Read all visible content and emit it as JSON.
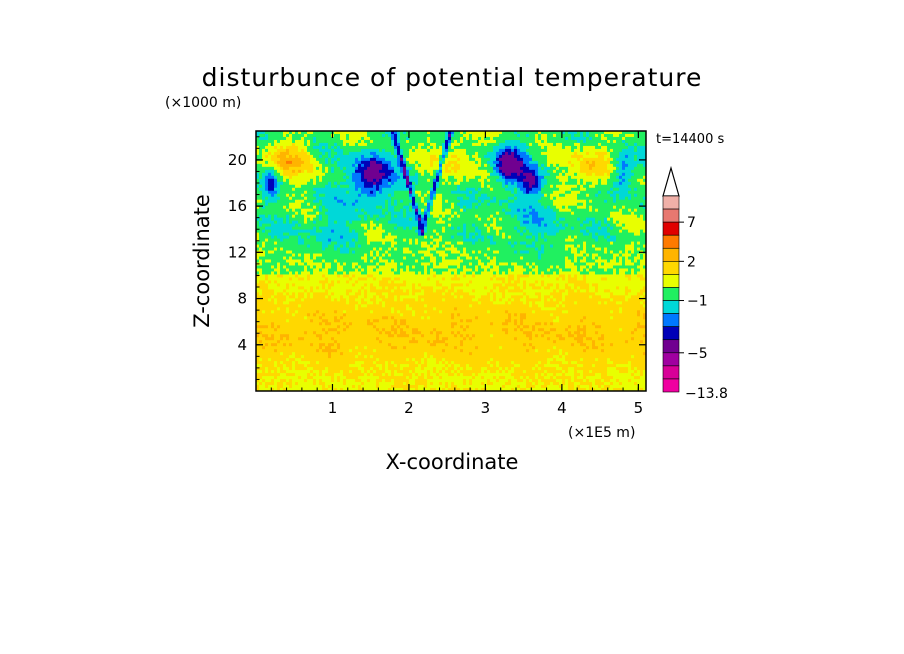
{
  "chart_data": {
    "type": "heatmap",
    "title": "disturbunce of potential temperature",
    "xlabel": "X-coordinate",
    "ylabel": "Z-coordinate",
    "x_unit": "(×1E5 m)",
    "y_unit": "(×1000 m)",
    "annotation": "t=14400 s",
    "xlim": [
      0,
      5.1
    ],
    "ylim": [
      0,
      22.5
    ],
    "x_ticks": [
      1,
      2,
      3,
      4,
      5
    ],
    "y_ticks": [
      4,
      8,
      12,
      16,
      20
    ],
    "colorbar": {
      "min_label": "−13.8",
      "tick_labels": [
        "7",
        "2",
        "−1",
        "−5"
      ],
      "levels_top_to_bottom": [
        {
          "color": "#f0b0a8"
        },
        {
          "color": "#e87870"
        },
        {
          "color": "#e00000"
        },
        {
          "color": "#ff7a00"
        },
        {
          "color": "#ffb400"
        },
        {
          "color": "#ffd800"
        },
        {
          "color": "#e8ff00"
        },
        {
          "color": "#20f060"
        },
        {
          "color": "#00d8d8"
        },
        {
          "color": "#0078ff"
        },
        {
          "color": "#0000b8"
        },
        {
          "color": "#700090"
        },
        {
          "color": "#a000a0"
        },
        {
          "color": "#d80098"
        },
        {
          "color": "#f000a0"
        }
      ]
    }
  }
}
